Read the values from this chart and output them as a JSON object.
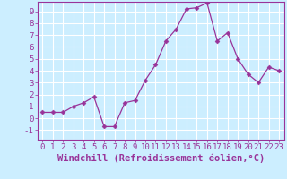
{
  "hours": [
    0,
    1,
    2,
    3,
    4,
    5,
    6,
    7,
    8,
    9,
    10,
    11,
    12,
    13,
    14,
    15,
    16,
    17,
    18,
    19,
    20,
    21,
    22,
    23
  ],
  "values": [
    0.5,
    0.5,
    0.5,
    1.0,
    1.3,
    1.8,
    -0.7,
    -0.7,
    1.3,
    1.5,
    3.2,
    4.5,
    6.5,
    7.5,
    9.2,
    9.3,
    9.7,
    6.5,
    7.2,
    5.0,
    3.7,
    3.0,
    4.3,
    4.0
  ],
  "line_color": "#993399",
  "marker": "D",
  "marker_size": 2.5,
  "bg_color": "#cceeff",
  "grid_color": "#ffffff",
  "axis_color": "#993399",
  "xlabel": "Windchill (Refroidissement éolien,°C)",
  "ylim": [
    -1.8,
    9.8
  ],
  "xlim": [
    -0.5,
    23.5
  ],
  "yticks": [
    -1,
    0,
    1,
    2,
    3,
    4,
    5,
    6,
    7,
    8,
    9
  ],
  "xticks": [
    0,
    1,
    2,
    3,
    4,
    5,
    6,
    7,
    8,
    9,
    10,
    11,
    12,
    13,
    14,
    15,
    16,
    17,
    18,
    19,
    20,
    21,
    22,
    23
  ],
  "tick_fontsize": 6.5,
  "xlabel_fontsize": 7.5,
  "spine_color": "#993399"
}
